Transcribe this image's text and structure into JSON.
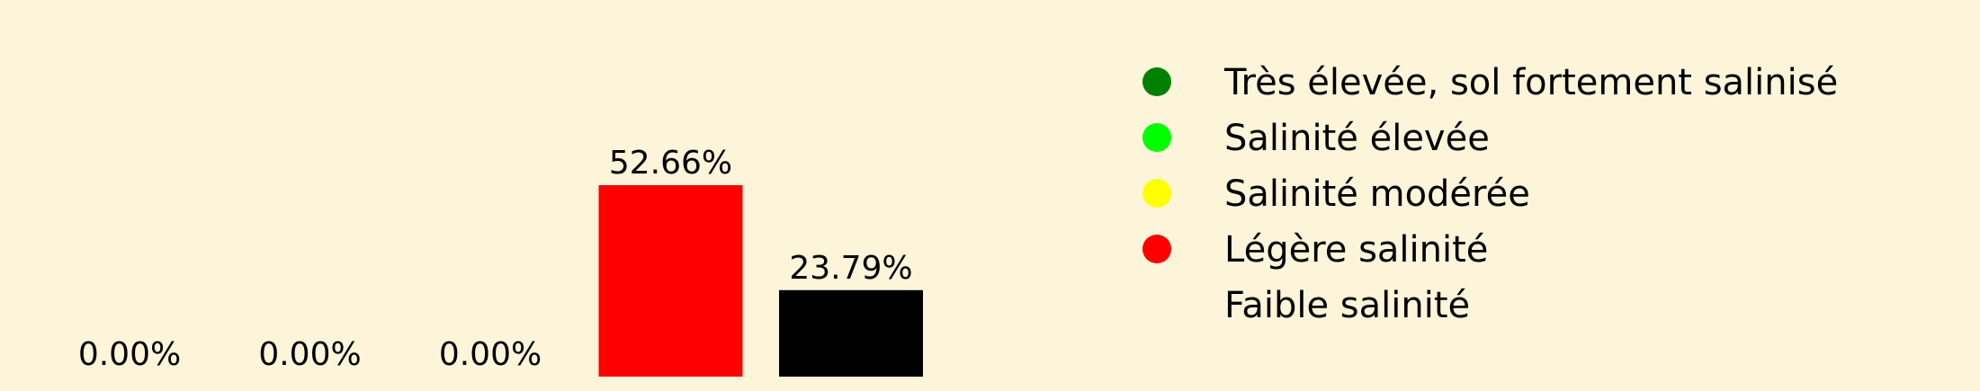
{
  "chart_data": {
    "type": "bar",
    "categories": [
      "Très élevée, sol fortement salinisé",
      "Salinité élevée",
      "Salinité modérée",
      "Légère salinité",
      "Faible salinité"
    ],
    "values": [
      0.0,
      0.0,
      0.0,
      52.66,
      23.79
    ],
    "value_labels": [
      "0.00%",
      "0.00%",
      "0.00%",
      "52.66%",
      "23.79%"
    ],
    "colors": [
      "#008000",
      "#00FF00",
      "#FFFF00",
      "#FF0000",
      "#000000"
    ],
    "title": "",
    "xlabel": "",
    "ylabel": "",
    "ylim": [
      0,
      55
    ],
    "grid": false,
    "axes_visible": false,
    "legend_position": "right",
    "legend": [
      {
        "label": "Très élevée, sol fortement salinisé",
        "color": "#008000"
      },
      {
        "label": "Salinité élevée",
        "color": "#00FF00"
      },
      {
        "label": "Salinité modérée",
        "color": "#FFFF00"
      },
      {
        "label": "Légère salinité",
        "color": "#FF0000"
      },
      {
        "label": "Faible salinité",
        "color": "#000000"
      }
    ]
  },
  "background_color": "#FDF5DA"
}
